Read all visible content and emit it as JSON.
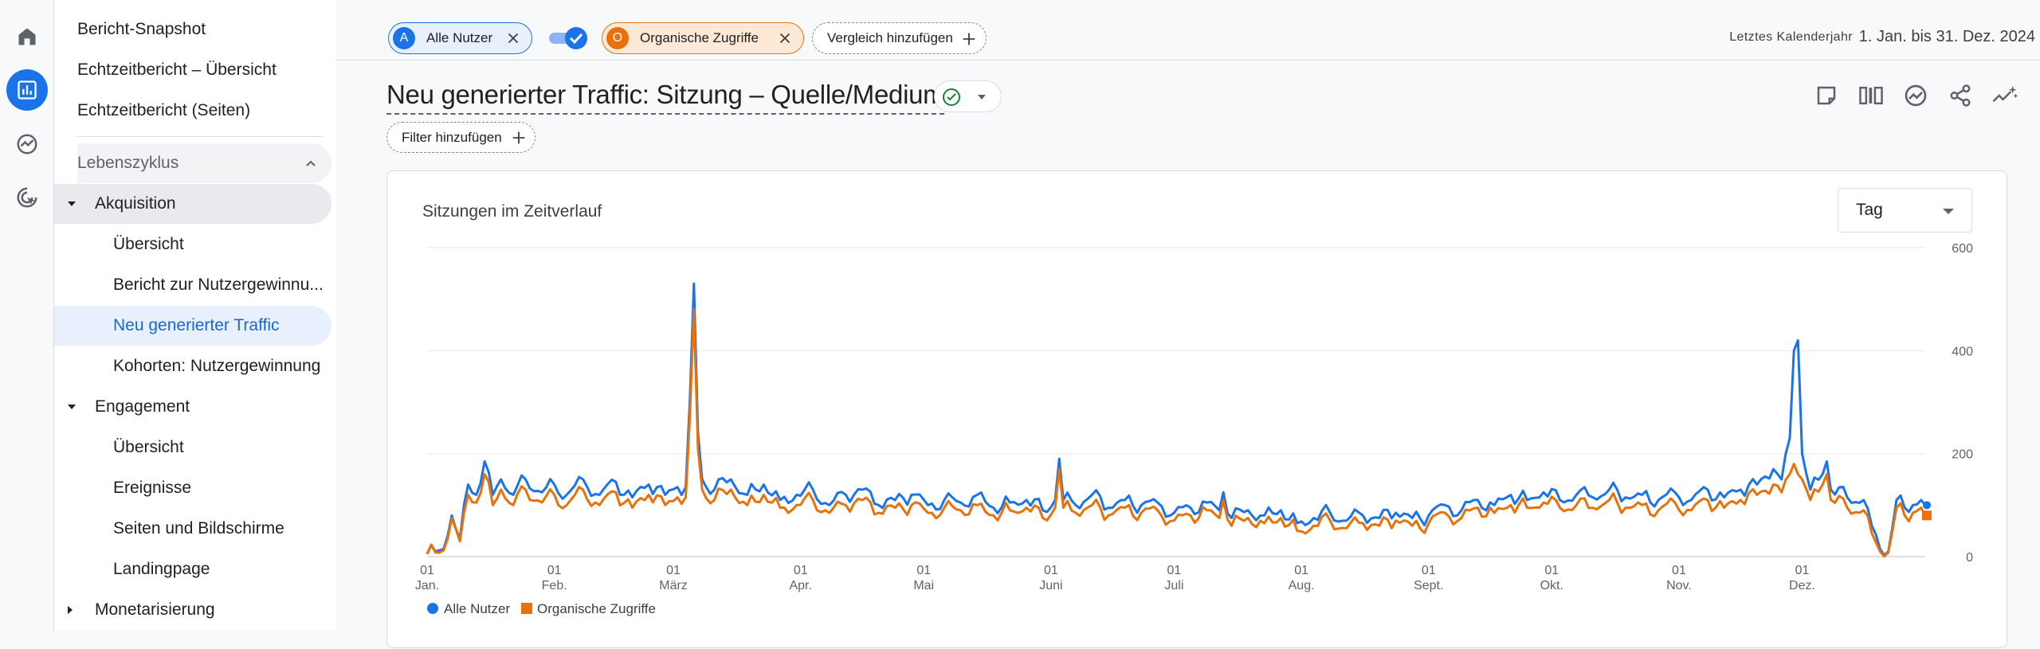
{
  "nav": {
    "snapshot": "Bericht-Snapshot",
    "realtime_overview": "Echtzeitbericht – Übersicht",
    "realtime_pages": "Echtzeitbericht (Seiten)",
    "lifecycle": "Lebenszyklus",
    "acquisition": "Akquisition",
    "acq_overview": "Übersicht",
    "acq_user": "Bericht zur Nutzergewinnu...",
    "acq_traffic": "Neu generierter Traffic",
    "acq_cohorts": "Kohorten: Nutzergewinnung",
    "engagement": "Engagement",
    "eng_overview": "Übersicht",
    "eng_events": "Ereignisse",
    "eng_pages": "Seiten und Bildschirme",
    "eng_landing": "Landingpage",
    "monetization": "Monetarisierung"
  },
  "comparison": {
    "segment_a": {
      "badge": "A",
      "label": "Alle Nutzer"
    },
    "segment_o": {
      "badge": "O",
      "label": "Organische Zugriffe"
    },
    "add_label": "Vergleich hinzufügen"
  },
  "date": {
    "label": "Letztes Kalenderjahr",
    "range": "1. Jan. bis 31. Dez. 2024"
  },
  "report": {
    "title": "Neu generierter Traffic: Sitzung – Quelle/Medium",
    "filter_label": "Filter hinzufügen"
  },
  "card": {
    "title": "Sitzungen im Zeitverlauf",
    "granularity": "Tag"
  },
  "colors": {
    "series_a": "#1a73e8",
    "series_o": "#e8710a"
  },
  "chart_data": {
    "type": "line",
    "title": "Sitzungen im Zeitverlauf",
    "xlabel": "",
    "ylabel": "",
    "ylim": [
      0,
      600
    ],
    "yticks": [
      0,
      200,
      400,
      600
    ],
    "grid": true,
    "x_ticks": [
      {
        "day": "01",
        "month": "Jan.",
        "index": 0
      },
      {
        "day": "01",
        "month": "Feb.",
        "index": 31
      },
      {
        "day": "01",
        "month": "März",
        "index": 60
      },
      {
        "day": "01",
        "month": "Apr.",
        "index": 91
      },
      {
        "day": "01",
        "month": "Mai",
        "index": 121
      },
      {
        "day": "01",
        "month": "Juni",
        "index": 152
      },
      {
        "day": "01",
        "month": "Juli",
        "index": 182
      },
      {
        "day": "01",
        "month": "Aug.",
        "index": 213
      },
      {
        "day": "01",
        "month": "Sept.",
        "index": 244
      },
      {
        "day": "01",
        "month": "Okt.",
        "index": 274
      },
      {
        "day": "01",
        "month": "Nov.",
        "index": 305
      },
      {
        "day": "01",
        "month": "Dez.",
        "index": 335
      }
    ],
    "num_days": 366,
    "series": [
      {
        "name": "Alle Nutzer",
        "anchors": [
          [
            0,
            5
          ],
          [
            2,
            10
          ],
          [
            4,
            15
          ],
          [
            6,
            80
          ],
          [
            8,
            35
          ],
          [
            10,
            140
          ],
          [
            12,
            120
          ],
          [
            14,
            185
          ],
          [
            16,
            120
          ],
          [
            18,
            150
          ],
          [
            21,
            120
          ],
          [
            24,
            150
          ],
          [
            28,
            125
          ],
          [
            31,
            140
          ],
          [
            34,
            120
          ],
          [
            38,
            150
          ],
          [
            42,
            120
          ],
          [
            46,
            145
          ],
          [
            50,
            115
          ],
          [
            54,
            140
          ],
          [
            58,
            120
          ],
          [
            61,
            135
          ],
          [
            63,
            135
          ],
          [
            64,
            300
          ],
          [
            65,
            530
          ],
          [
            66,
            240
          ],
          [
            67,
            150
          ],
          [
            70,
            130
          ],
          [
            74,
            150
          ],
          [
            78,
            120
          ],
          [
            82,
            140
          ],
          [
            86,
            110
          ],
          [
            90,
            120
          ],
          [
            94,
            130
          ],
          [
            98,
            100
          ],
          [
            102,
            120
          ],
          [
            106,
            130
          ],
          [
            110,
            100
          ],
          [
            114,
            110
          ],
          [
            118,
            120
          ],
          [
            122,
            100
          ],
          [
            126,
            110
          ],
          [
            130,
            105
          ],
          [
            134,
            120
          ],
          [
            138,
            95
          ],
          [
            142,
            105
          ],
          [
            146,
            110
          ],
          [
            150,
            90
          ],
          [
            153,
            110
          ],
          [
            154,
            190
          ],
          [
            155,
            110
          ],
          [
            158,
            100
          ],
          [
            162,
            120
          ],
          [
            166,
            95
          ],
          [
            170,
            110
          ],
          [
            174,
            100
          ],
          [
            178,
            105
          ],
          [
            182,
            85
          ],
          [
            186,
            95
          ],
          [
            190,
            105
          ],
          [
            193,
            90
          ],
          [
            194,
            125
          ],
          [
            196,
            75
          ],
          [
            200,
            90
          ],
          [
            204,
            80
          ],
          [
            208,
            90
          ],
          [
            212,
            65
          ],
          [
            216,
            75
          ],
          [
            220,
            85
          ],
          [
            224,
            70
          ],
          [
            228,
            80
          ],
          [
            232,
            75
          ],
          [
            236,
            85
          ],
          [
            240,
            75
          ],
          [
            244,
            80
          ],
          [
            248,
            100
          ],
          [
            252,
            90
          ],
          [
            256,
            110
          ],
          [
            260,
            100
          ],
          [
            264,
            120
          ],
          [
            268,
            110
          ],
          [
            272,
            125
          ],
          [
            276,
            110
          ],
          [
            280,
            120
          ],
          [
            284,
            115
          ],
          [
            288,
            130
          ],
          [
            292,
            115
          ],
          [
            296,
            120
          ],
          [
            300,
            110
          ],
          [
            304,
            125
          ],
          [
            308,
            110
          ],
          [
            312,
            130
          ],
          [
            316,
            115
          ],
          [
            320,
            130
          ],
          [
            324,
            140
          ],
          [
            328,
            170
          ],
          [
            330,
            150
          ],
          [
            332,
            230
          ],
          [
            333,
            400
          ],
          [
            334,
            420
          ],
          [
            335,
            200
          ],
          [
            337,
            130
          ],
          [
            340,
            160
          ],
          [
            341,
            185
          ],
          [
            342,
            130
          ],
          [
            346,
            115
          ],
          [
            350,
            110
          ],
          [
            352,
            60
          ],
          [
            354,
            15
          ],
          [
            356,
            10
          ],
          [
            358,
            110
          ],
          [
            360,
            95
          ],
          [
            362,
            100
          ],
          [
            364,
            110
          ],
          [
            365,
            100
          ]
        ]
      },
      {
        "name": "Organische Zugriffe",
        "anchors": [
          [
            0,
            5
          ],
          [
            2,
            8
          ],
          [
            4,
            12
          ],
          [
            6,
            75
          ],
          [
            8,
            30
          ],
          [
            10,
            120
          ],
          [
            12,
            105
          ],
          [
            14,
            160
          ],
          [
            16,
            100
          ],
          [
            18,
            130
          ],
          [
            21,
            100
          ],
          [
            24,
            130
          ],
          [
            28,
            105
          ],
          [
            31,
            120
          ],
          [
            34,
            100
          ],
          [
            38,
            130
          ],
          [
            42,
            100
          ],
          [
            46,
            125
          ],
          [
            50,
            95
          ],
          [
            54,
            120
          ],
          [
            58,
            100
          ],
          [
            61,
            115
          ],
          [
            63,
            115
          ],
          [
            64,
            270
          ],
          [
            65,
            480
          ],
          [
            66,
            210
          ],
          [
            67,
            130
          ],
          [
            70,
            110
          ],
          [
            74,
            130
          ],
          [
            78,
            100
          ],
          [
            82,
            120
          ],
          [
            86,
            95
          ],
          [
            90,
            100
          ],
          [
            94,
            110
          ],
          [
            98,
            85
          ],
          [
            102,
            100
          ],
          [
            106,
            110
          ],
          [
            110,
            85
          ],
          [
            114,
            95
          ],
          [
            118,
            100
          ],
          [
            122,
            85
          ],
          [
            126,
            95
          ],
          [
            130,
            90
          ],
          [
            134,
            100
          ],
          [
            138,
            80
          ],
          [
            142,
            90
          ],
          [
            146,
            95
          ],
          [
            150,
            75
          ],
          [
            153,
            95
          ],
          [
            154,
            170
          ],
          [
            155,
            95
          ],
          [
            158,
            85
          ],
          [
            162,
            100
          ],
          [
            166,
            80
          ],
          [
            170,
            95
          ],
          [
            174,
            85
          ],
          [
            178,
            90
          ],
          [
            182,
            70
          ],
          [
            186,
            80
          ],
          [
            190,
            90
          ],
          [
            193,
            75
          ],
          [
            194,
            110
          ],
          [
            196,
            60
          ],
          [
            200,
            75
          ],
          [
            204,
            65
          ],
          [
            208,
            75
          ],
          [
            212,
            50
          ],
          [
            216,
            60
          ],
          [
            220,
            70
          ],
          [
            224,
            55
          ],
          [
            228,
            65
          ],
          [
            232,
            60
          ],
          [
            236,
            70
          ],
          [
            240,
            60
          ],
          [
            244,
            65
          ],
          [
            248,
            85
          ],
          [
            252,
            75
          ],
          [
            256,
            95
          ],
          [
            260,
            85
          ],
          [
            264,
            100
          ],
          [
            268,
            95
          ],
          [
            272,
            105
          ],
          [
            276,
            95
          ],
          [
            280,
            100
          ],
          [
            284,
            95
          ],
          [
            288,
            110
          ],
          [
            292,
            95
          ],
          [
            296,
            100
          ],
          [
            300,
            90
          ],
          [
            304,
            105
          ],
          [
            308,
            90
          ],
          [
            312,
            110
          ],
          [
            316,
            95
          ],
          [
            320,
            110
          ],
          [
            324,
            120
          ],
          [
            328,
            140
          ],
          [
            330,
            125
          ],
          [
            332,
            160
          ],
          [
            333,
            180
          ],
          [
            334,
            160
          ],
          [
            335,
            150
          ],
          [
            337,
            110
          ],
          [
            340,
            140
          ],
          [
            341,
            160
          ],
          [
            342,
            110
          ],
          [
            346,
            95
          ],
          [
            350,
            90
          ],
          [
            352,
            45
          ],
          [
            354,
            10
          ],
          [
            356,
            8
          ],
          [
            358,
            95
          ],
          [
            360,
            80
          ],
          [
            362,
            85
          ],
          [
            364,
            95
          ],
          [
            365,
            80
          ]
        ]
      }
    ],
    "legend": [
      "Alle Nutzer",
      "Organische Zugriffe"
    ],
    "legend_position": "bottom-left"
  }
}
